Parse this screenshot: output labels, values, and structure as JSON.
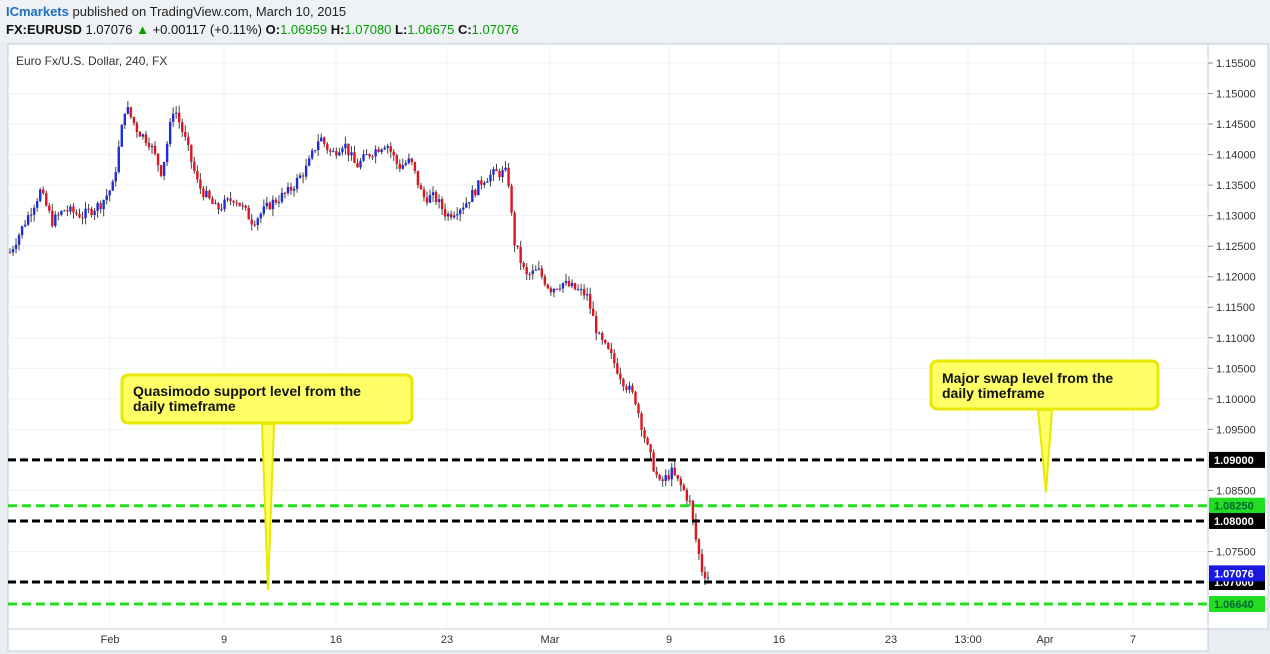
{
  "header": {
    "author": "ICmarkets",
    "published_text": "published on TradingView.com, March 10, 2015",
    "symbol": "FX:EURUSD",
    "last_price": "1.07076",
    "change_arrow": "▲",
    "change": "+0.00117 (+0.11%)",
    "open_label": "O:",
    "open_value": "1.06959",
    "high_label": "H:",
    "high_value": "1.07080",
    "low_label": "L:",
    "low_value": "1.06675",
    "close_label": "C:",
    "close_value": "1.07076"
  },
  "chart_data": {
    "type": "candlestick",
    "title": "Euro Fx/U.S. Dollar, 240, FX",
    "y_axis_ticks": [
      "1.15500",
      "1.15000",
      "1.14500",
      "1.14000",
      "1.13500",
      "1.13000",
      "1.12500",
      "1.12000",
      "1.11500",
      "1.11000",
      "1.10500",
      "1.10000",
      "1.09500",
      "1.08500",
      "1.07500"
    ],
    "ylim": [
      1.0625,
      1.1575
    ],
    "x_axis_ticks": [
      "Feb",
      "9",
      "16",
      "23",
      "Mar",
      "9",
      "16",
      "23",
      "13:00",
      "Apr",
      "7"
    ],
    "horizontal_levels": [
      {
        "label": "1.09000",
        "value": 1.09,
        "style": "black-dashed"
      },
      {
        "label": "1.08250",
        "value": 1.0825,
        "style": "green-dashed"
      },
      {
        "label": "1.08000",
        "value": 1.08,
        "style": "black-dashed"
      },
      {
        "label": "1.07000",
        "value": 1.07,
        "style": "black-dashed"
      },
      {
        "label": "1.06640",
        "value": 1.0664,
        "style": "green-dashed"
      }
    ],
    "current_price": {
      "label": "1.07076",
      "value": 1.07076
    },
    "price_path": [
      [
        0,
        1.124
      ],
      [
        3,
        1.13
      ],
      [
        5,
        1.134
      ],
      [
        7,
        1.129
      ],
      [
        9,
        1.131
      ],
      [
        12,
        1.13
      ],
      [
        15,
        1.132
      ],
      [
        17,
        1.135
      ],
      [
        19,
        1.148
      ],
      [
        21,
        1.144
      ],
      [
        23,
        1.142
      ],
      [
        25,
        1.137
      ],
      [
        27,
        1.148
      ],
      [
        29,
        1.142
      ],
      [
        31,
        1.135
      ],
      [
        34,
        1.131
      ],
      [
        37,
        1.133
      ],
      [
        40,
        1.129
      ],
      [
        43,
        1.132
      ],
      [
        46,
        1.134
      ],
      [
        49,
        1.138
      ],
      [
        51,
        1.143
      ],
      [
        53,
        1.14
      ],
      [
        55,
        1.142
      ],
      [
        57,
        1.138
      ],
      [
        59,
        1.14
      ],
      [
        62,
        1.142
      ],
      [
        64,
        1.138
      ],
      [
        66,
        1.139
      ],
      [
        68,
        1.133
      ],
      [
        70,
        1.133
      ],
      [
        72,
        1.13
      ],
      [
        75,
        1.132
      ],
      [
        78,
        1.136
      ],
      [
        80,
        1.137
      ],
      [
        82,
        1.137
      ],
      [
        83,
        1.126
      ],
      [
        85,
        1.12
      ],
      [
        87,
        1.121
      ],
      [
        89,
        1.118
      ],
      [
        91,
        1.119
      ],
      [
        93,
        1.118
      ],
      [
        95,
        1.117
      ],
      [
        97,
        1.11
      ],
      [
        99,
        1.107
      ],
      [
        101,
        1.103
      ],
      [
        103,
        1.1
      ],
      [
        105,
        1.092
      ],
      [
        107,
        1.086
      ],
      [
        109,
        1.088
      ],
      [
        111,
        1.085
      ],
      [
        112,
        1.083
      ],
      [
        113,
        1.077
      ],
      [
        114,
        1.072
      ],
      [
        115,
        1.0707
      ]
    ],
    "annotations": [
      {
        "text_line1": "Quasimodo support level from the",
        "text_line2": "daily timeframe",
        "points_to": 1.07
      },
      {
        "text_line1": "Major swap level from the",
        "text_line2": "daily timeframe",
        "points_to": 1.0825
      }
    ],
    "colors": {
      "up": "#1b2fd4",
      "down": "#e0141e",
      "level_black": "#000000",
      "level_green": "#22dd22",
      "callout": "#ffff66",
      "callout_border": "#e8e800",
      "price_label_bg": "#1818e0"
    }
  }
}
